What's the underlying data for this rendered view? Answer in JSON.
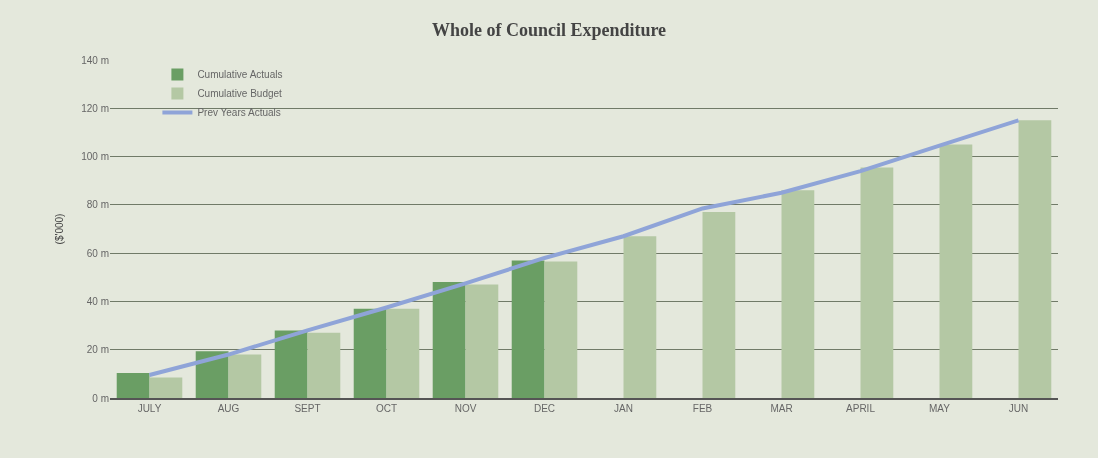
{
  "chart_data": {
    "type": "bar",
    "title": "Whole of Council Expenditure",
    "ylabel": "($'000)",
    "categories": [
      "JULY",
      "AUG",
      "SEPT",
      "OCT",
      "NOV",
      "DEC",
      "JAN",
      "FEB",
      "MAR",
      "APRIL",
      "MAY",
      "JUN"
    ],
    "series": [
      {
        "name": "Cumulative Actuals",
        "color": "#6a9e64",
        "values": [
          10.4,
          19.4,
          28,
          37,
          48,
          57,
          null,
          null,
          null,
          null,
          null,
          null
        ]
      },
      {
        "name": "Cumulative Budget",
        "color": "#b4c8a4",
        "values": [
          8.5,
          18,
          27,
          37,
          47,
          56.5,
          67,
          77,
          86,
          95.5,
          105,
          115
        ]
      },
      {
        "name": "Prev Years Actuals",
        "type": "line",
        "color": "#8fa4d8",
        "values": [
          9.5,
          18,
          28,
          37.5,
          47.5,
          58,
          67,
          78.5,
          85,
          94,
          104.5,
          115
        ]
      }
    ],
    "ylim": [
      0,
      140
    ],
    "yticks": [
      {
        "value": 0,
        "label": "0 m"
      },
      {
        "value": 20,
        "label": "20 m"
      },
      {
        "value": 40,
        "label": "40 m"
      },
      {
        "value": 60,
        "label": "60 m"
      },
      {
        "value": 80,
        "label": "80 m"
      },
      {
        "value": 100,
        "label": "100 m"
      },
      {
        "value": 120,
        "label": "120 m"
      },
      {
        "value": 140,
        "label": "140 m"
      }
    ],
    "grid": "y",
    "legend": "top left",
    "marker": "none"
  }
}
